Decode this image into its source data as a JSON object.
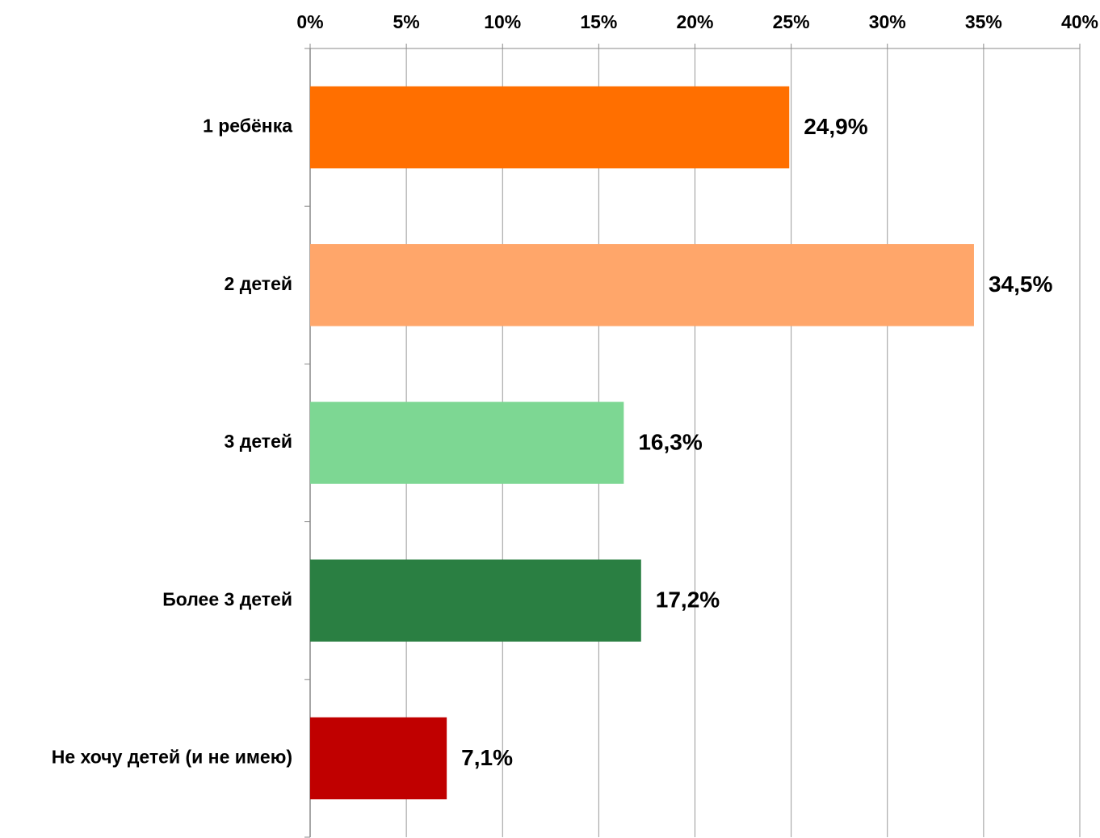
{
  "chart_data": {
    "type": "barh",
    "categories": [
      "1 ребёнка",
      "2 детей",
      "3 детей",
      "Более 3 детей",
      "Не хочу детей (и не имею)"
    ],
    "values": [
      24.9,
      34.5,
      16.3,
      17.2,
      7.1
    ],
    "value_labels": [
      "24,9%",
      "34,5%",
      "16,3%",
      "17,2%",
      "7,1%"
    ],
    "colors": [
      "#ff6f00",
      "#ffa66a",
      "#7dd793",
      "#2a7f42",
      "#c00000"
    ],
    "xlim": [
      0,
      40
    ],
    "xticks": [
      {
        "value": 0,
        "label": "0%"
      },
      {
        "value": 5,
        "label": "5%"
      },
      {
        "value": 10,
        "label": "10%"
      },
      {
        "value": 15,
        "label": "15%"
      },
      {
        "value": 20,
        "label": "20%"
      },
      {
        "value": 25,
        "label": "25%"
      },
      {
        "value": 30,
        "label": "30%"
      },
      {
        "value": 35,
        "label": "35%"
      },
      {
        "value": 40,
        "label": "40%"
      }
    ],
    "grid": true
  }
}
